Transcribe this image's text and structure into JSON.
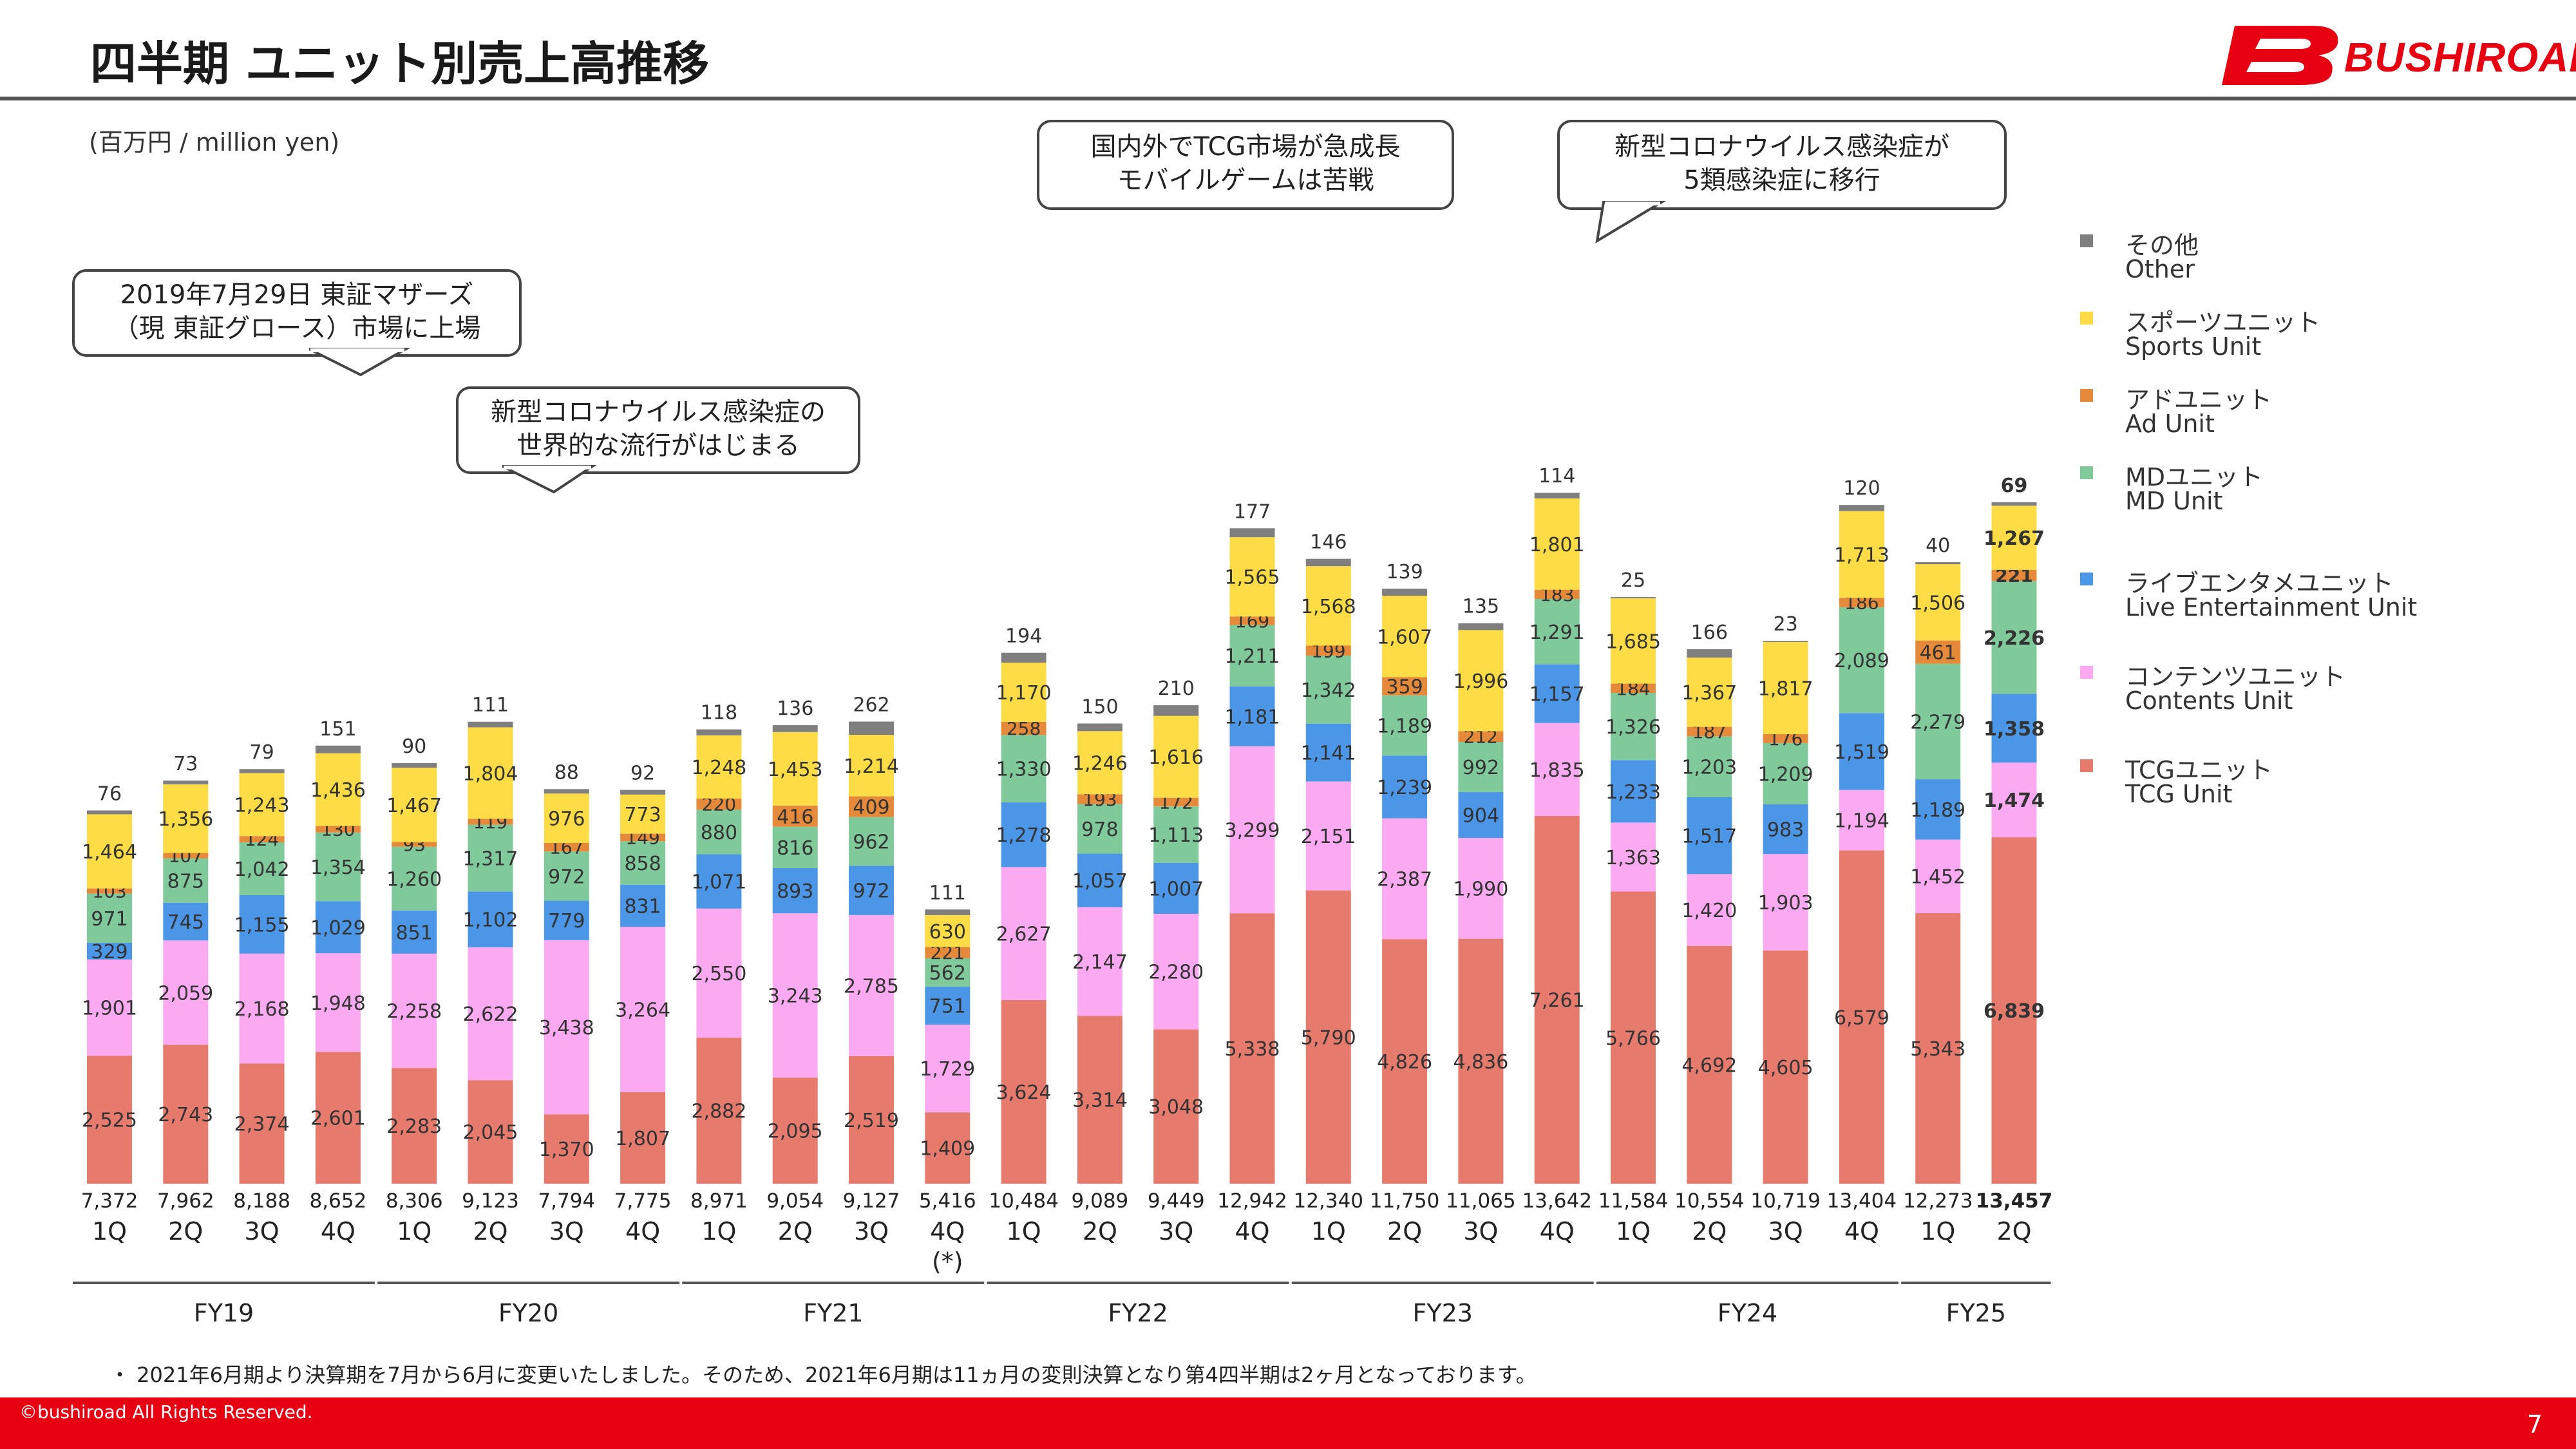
{
  "header": {
    "title": "四半期 ユニット別売上高推移",
    "logo_text": "BUSHIROAD"
  },
  "unit_label": "(百万円 / million yen)",
  "callouts": [
    {
      "id": "listing",
      "lines": [
        "2019年7月29日 東証マザーズ",
        "（現 東証グロース）市場に上場"
      ]
    },
    {
      "id": "covid",
      "lines": [
        "新型コロナウイルス感染症の",
        "世界的な流行がはじまる"
      ]
    },
    {
      "id": "tcg",
      "lines": [
        "国内外でTCG市場が急成長",
        "モバイルゲームは苦戦"
      ]
    },
    {
      "id": "covid5",
      "lines": [
        "新型コロナウイルス感染症が",
        "5類感染症に移行"
      ]
    }
  ],
  "legend": [
    {
      "ja": "その他",
      "en": "Other",
      "color": "#7f7f7f"
    },
    {
      "ja": "スポーツユニット",
      "en": "Sports Unit",
      "color": "#fedc45"
    },
    {
      "ja": "アドユニット",
      "en": "Ad Unit",
      "color": "#e58a3a"
    },
    {
      "ja": "MDユニット",
      "en": "MD Unit",
      "color": "#7fc99a"
    },
    {
      "ja": "ライブエンタメユニット",
      "en": "Live Entertainment Unit",
      "color": "#4b96e6"
    },
    {
      "ja": "コンテンツユニット",
      "en": "Contents Unit",
      "color": "#fba9f0"
    },
    {
      "ja": "TCGユニット",
      "en": "TCG Unit",
      "color": "#e67a6d"
    }
  ],
  "chart_data": {
    "type": "bar",
    "stacked": true,
    "title": "四半期 ユニット別売上高推移",
    "ylabel": "(百万円 / million yen)",
    "categories": [
      "1Q",
      "2Q",
      "3Q",
      "4Q",
      "1Q",
      "2Q",
      "3Q",
      "4Q",
      "1Q",
      "2Q",
      "3Q",
      "4Q",
      "1Q",
      "2Q",
      "3Q",
      "4Q",
      "1Q",
      "2Q",
      "3Q",
      "4Q",
      "1Q",
      "2Q",
      "3Q",
      "4Q",
      "1Q",
      "2Q"
    ],
    "fiscal_years": [
      {
        "label": "FY19",
        "count": 4
      },
      {
        "label": "FY20",
        "count": 4
      },
      {
        "label": "FY21",
        "count": 4
      },
      {
        "label": "FY22",
        "count": 4
      },
      {
        "label": "FY23",
        "count": 4
      },
      {
        "label": "FY24",
        "count": 4
      },
      {
        "label": "FY25",
        "count": 2
      }
    ],
    "category_notes": [
      "",
      "",
      "",
      "",
      "",
      "",
      "",
      "",
      "",
      "",
      "",
      "(*)",
      "",
      "",
      "",
      "",
      "",
      "",
      "",
      "",
      "",
      "",
      "",
      "",
      "",
      ""
    ],
    "series": [
      {
        "name": "TCGユニット",
        "color": "#e67a6d",
        "values": [
          2525,
          2743,
          2374,
          2601,
          2283,
          2045,
          1370,
          1807,
          2882,
          2095,
          2519,
          1409,
          3624,
          3314,
          3048,
          5338,
          5790,
          4826,
          4836,
          7261,
          5766,
          4692,
          4605,
          6579,
          5343,
          6839
        ]
      },
      {
        "name": "コンテンツユニット",
        "color": "#fba9f0",
        "values": [
          1901,
          2059,
          2168,
          1948,
          2258,
          2622,
          3438,
          3264,
          2550,
          3243,
          2785,
          1729,
          2627,
          2147,
          2280,
          3299,
          2151,
          2387,
          1990,
          1835,
          1363,
          1420,
          1903,
          1194,
          1452,
          1474
        ]
      },
      {
        "name": "ライブエンタメユニット",
        "color": "#4b96e6",
        "values": [
          329,
          745,
          1155,
          1029,
          851,
          1102,
          779,
          831,
          1071,
          893,
          972,
          751,
          1278,
          1057,
          1007,
          1181,
          1141,
          1239,
          904,
          1157,
          1233,
          1517,
          983,
          1519,
          1189,
          1358
        ]
      },
      {
        "name": "MDユニット",
        "color": "#7fc99a",
        "values": [
          971,
          875,
          1042,
          1354,
          1260,
          1317,
          972,
          858,
          880,
          816,
          962,
          562,
          1330,
          978,
          1113,
          1211,
          1342,
          1189,
          992,
          1291,
          1326,
          1203,
          1209,
          2089,
          2279,
          2226
        ]
      },
      {
        "name": "アドユニット",
        "color": "#e58a3a",
        "values": [
          103,
          107,
          124,
          130,
          93,
          119,
          167,
          149,
          220,
          416,
          409,
          221,
          258,
          193,
          172,
          169,
          199,
          359,
          212,
          183,
          184,
          187,
          176,
          186,
          461,
          221
        ]
      },
      {
        "name": "スポーツユニット",
        "color": "#fedc45",
        "values": [
          1464,
          1356,
          1243,
          1436,
          1467,
          1804,
          976,
          773,
          1248,
          1453,
          1214,
          630,
          1170,
          1246,
          1616,
          1565,
          1568,
          1607,
          1996,
          1801,
          1685,
          1367,
          1817,
          1713,
          1506,
          1267
        ]
      },
      {
        "name": "その他",
        "color": "#7f7f7f",
        "values": [
          76,
          73,
          79,
          151,
          90,
          111,
          88,
          92,
          118,
          136,
          262,
          111,
          194,
          150,
          210,
          177,
          146,
          139,
          135,
          114,
          25,
          166,
          23,
          120,
          40,
          69
        ]
      }
    ],
    "totals": [
      7372,
      7962,
      8188,
      8652,
      8306,
      9123,
      7794,
      7775,
      8971,
      9054,
      9127,
      5416,
      10484,
      9089,
      9449,
      12942,
      12340,
      11750,
      11065,
      13642,
      11584,
      10554,
      10719,
      13404,
      12273,
      13457
    ],
    "ylim": [
      0,
      14000
    ],
    "grid": false,
    "legend_position": "right",
    "bold_last_category": true
  },
  "footnote": "・ 2021年6月期より決算期を7月から6月に変更いたしました。そのため、2021年6月期は11ヵ月の変則決算となり第4四半期は2ヶ月となっております。",
  "footer": {
    "copyright": "©bushiroad All Rights Reserved.",
    "page": "7"
  }
}
